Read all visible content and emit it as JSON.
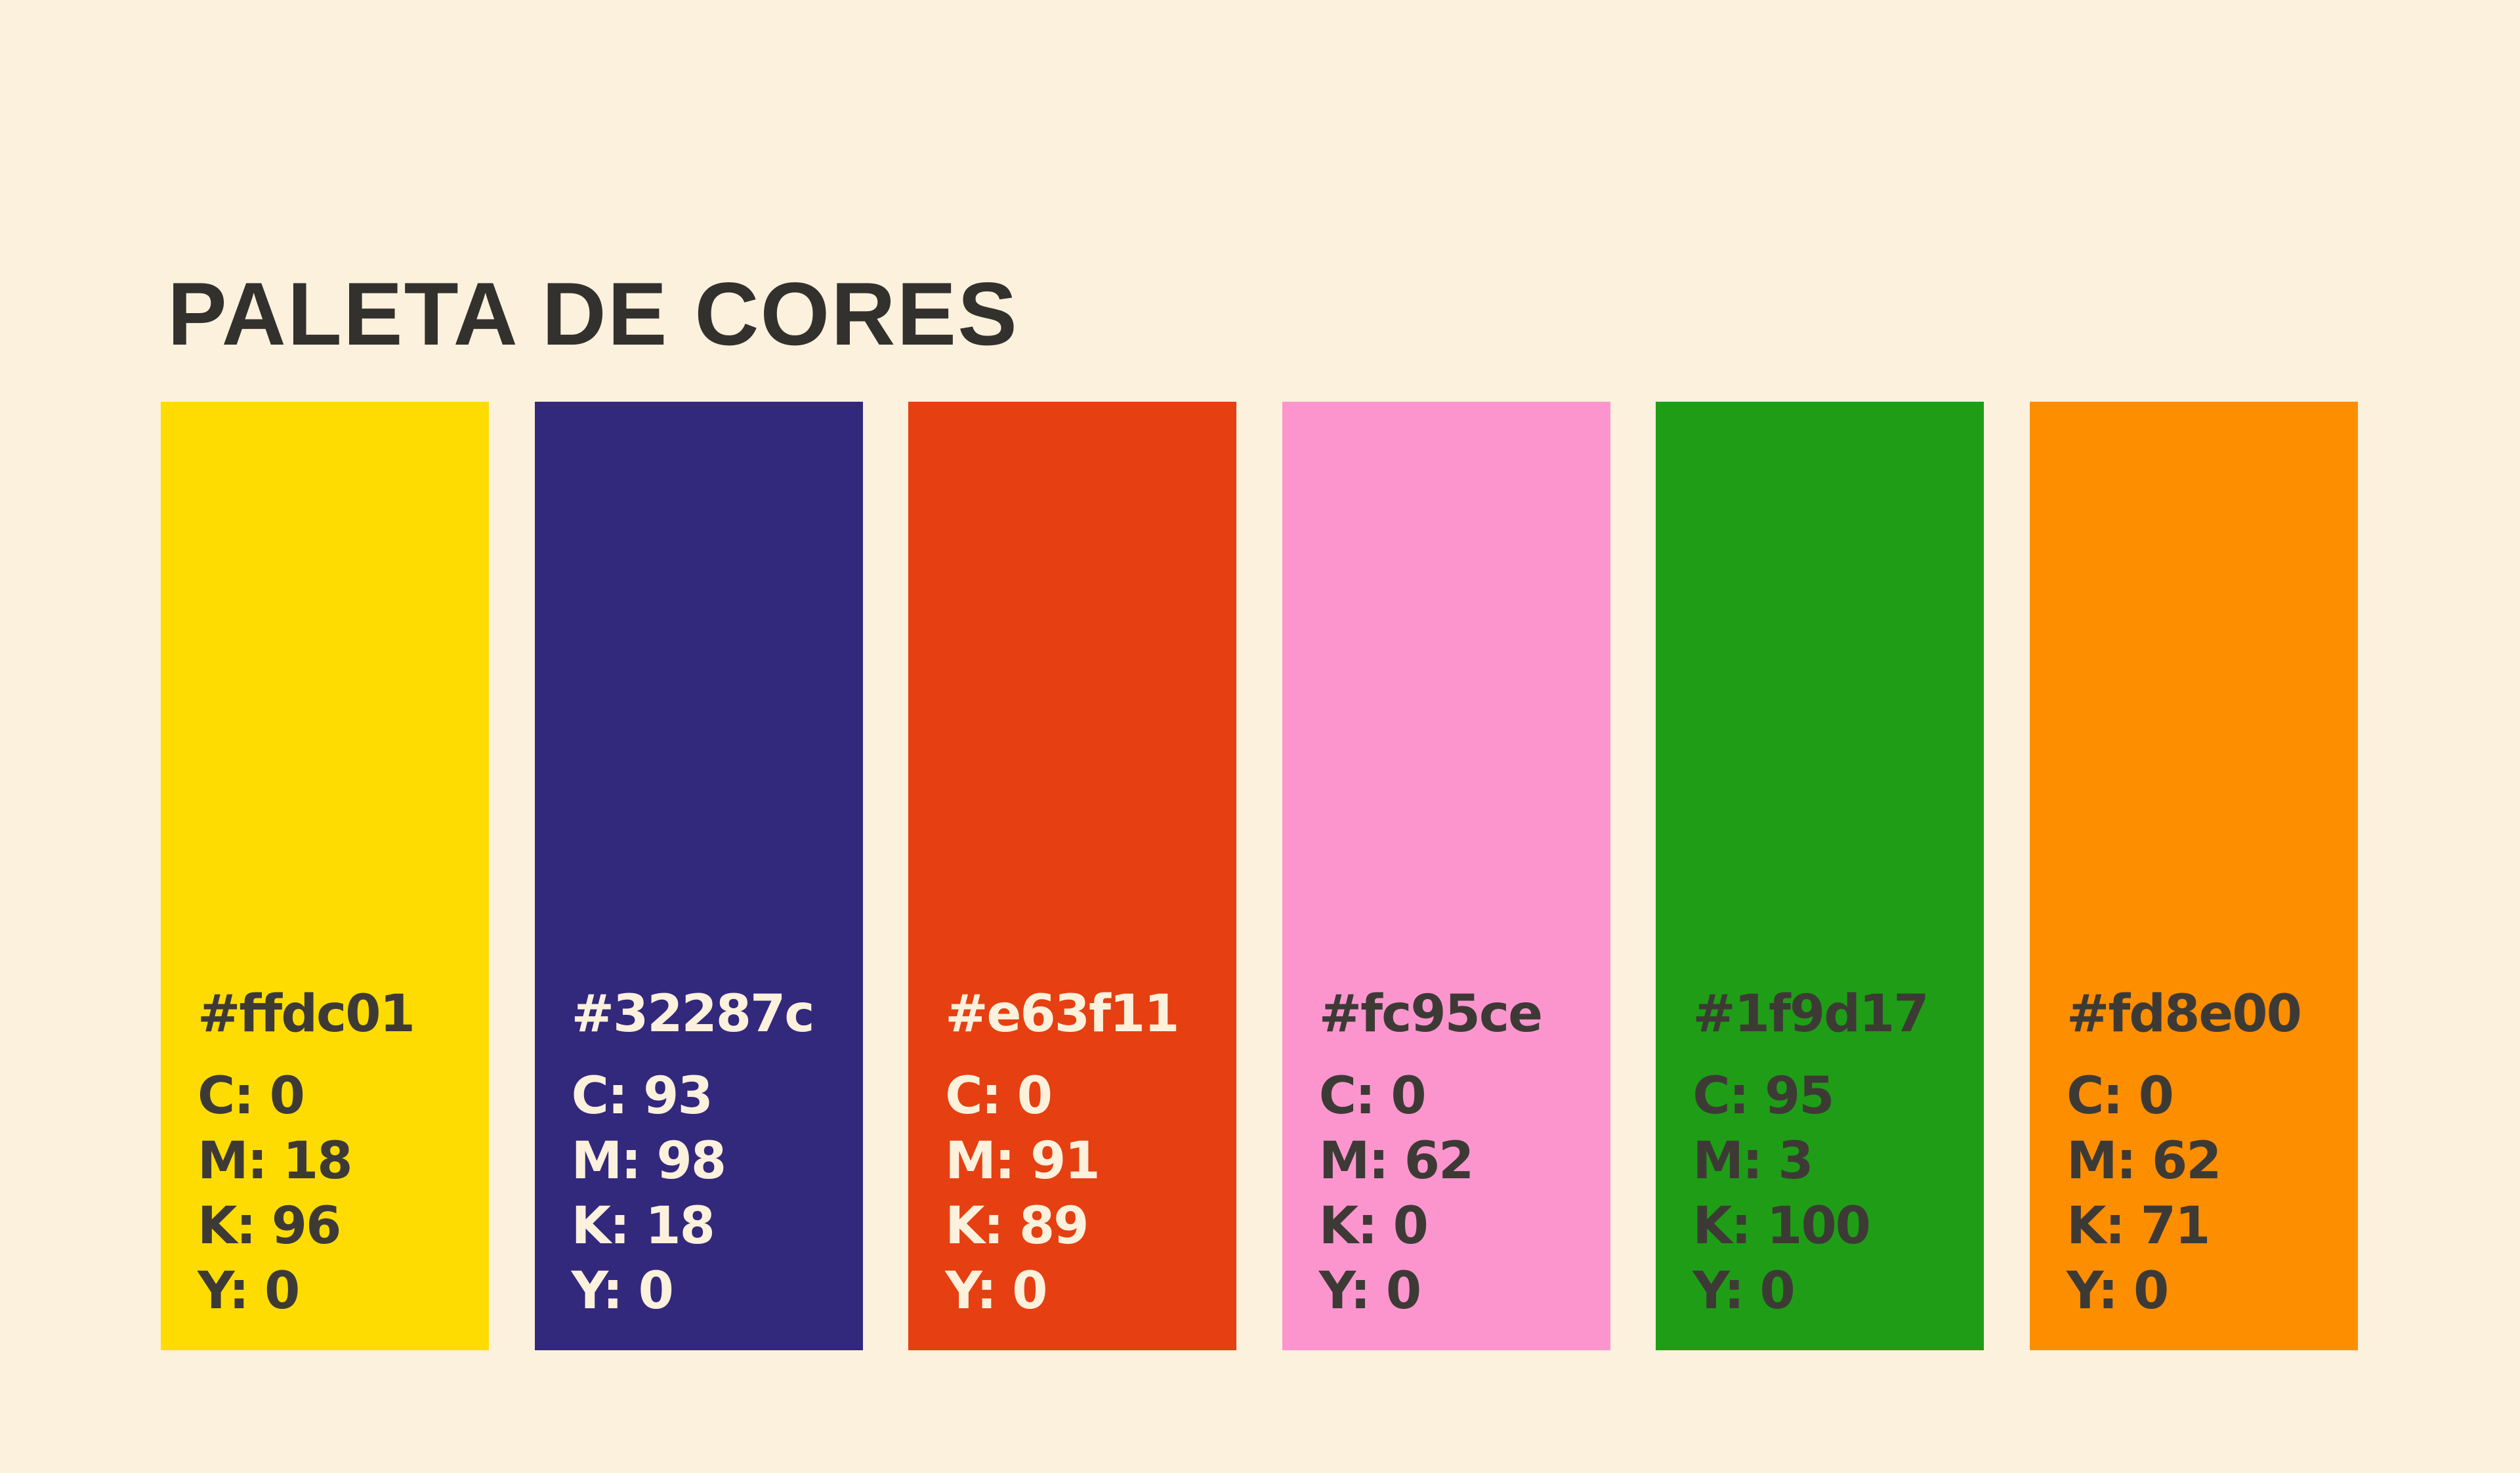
{
  "title": "PALETA DE CORES",
  "swatches": [
    {
      "hex": "#ffdc01",
      "text_color": "#3d3a36",
      "lines": [
        "C: 0",
        "M: 18",
        "K: 96",
        "Y: 0"
      ]
    },
    {
      "hex": "#32287c",
      "text_color": "#fbf1dc",
      "lines": [
        "C: 93",
        "M: 98",
        "K: 18",
        "Y: 0"
      ]
    },
    {
      "hex": "#e63f11",
      "text_color": "#fbf1dc",
      "lines": [
        "C: 0",
        "M: 91",
        "K: 89",
        "Y: 0"
      ]
    },
    {
      "hex": "#fc95ce",
      "text_color": "#3d3a36",
      "lines": [
        "C: 0",
        "M: 62",
        "K: 0",
        "Y: 0"
      ]
    },
    {
      "hex": "#1f9d17",
      "text_color": "#3d3a36",
      "lines": [
        "C: 95",
        "M: 3",
        "K: 100",
        "Y: 0"
      ]
    },
    {
      "hex": "#fd8e00",
      "text_color": "#3d3a36",
      "lines": [
        "C: 0",
        "M: 62",
        "K: 71",
        "Y: 0"
      ]
    }
  ]
}
